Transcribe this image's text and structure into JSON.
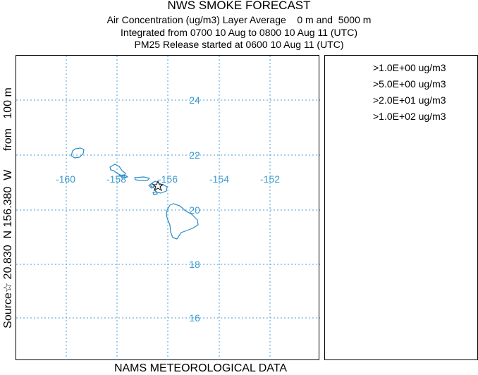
{
  "title": "NWS SMOKE FORECAST",
  "subtitle_1": "Air Concentration (ug/m3) Layer Average    0 m and  5000 m",
  "subtitle_2": "Integrated from 0700 10 Aug to 0800 10 Aug 11 (UTC)",
  "subtitle_3": "PM25 Release started at 0600 10 Aug 11 (UTC)",
  "side_label": "Source☆ 20.830  N 156.380  W      from   100 m",
  "bottom_label": "NAMS METEOROLOGICAL DATA",
  "legend": [
    ">1.0E+00 ug/m3",
    ">5.0E+00 ug/m3",
    ">2.0E+01 ug/m3",
    ">1.0E+02 ug/m3"
  ],
  "longitude_labels": [
    "-160",
    "-158",
    "-156",
    "-154",
    "-152"
  ],
  "latitude_labels": [
    "24",
    "22",
    "20",
    "18",
    "16"
  ],
  "colors": {
    "grid": "#4a9ed8",
    "coast": "#2a8ac8",
    "label": "#3a9ad0"
  }
}
